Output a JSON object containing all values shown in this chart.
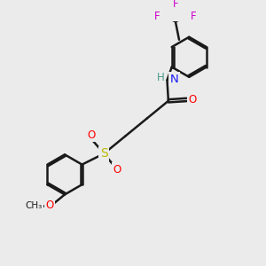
{
  "background_color": "#ebebeb",
  "bond_color": "#1a1a1a",
  "bond_width": 1.8,
  "atom_colors": {
    "C": "#1a1a1a",
    "H": "#4a9a8a",
    "N": "#1a1aff",
    "O": "#ff0000",
    "S": "#bbbb00",
    "F": "#cc00cc"
  },
  "font_size": 8.5,
  "figsize": [
    3.0,
    3.0
  ],
  "dpi": 100
}
